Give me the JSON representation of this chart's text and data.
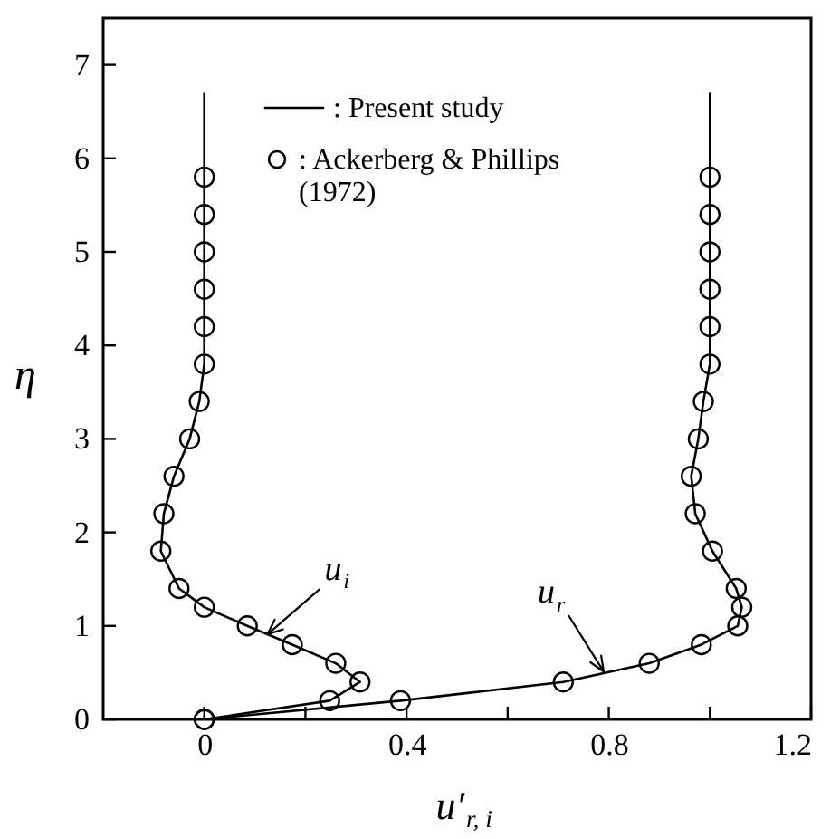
{
  "chart_data": {
    "type": "line",
    "xlabel": "u′$_{r, i}$",
    "ylabel": "η",
    "xlim": [
      -0.2,
      1.2
    ],
    "ylim": [
      0,
      7.5
    ],
    "xticks": [
      0,
      {
        "value": 0.2,
        "label": null
      },
      0.4,
      {
        "value": 0.6,
        "label": null
      },
      0.8,
      {
        "value": 1.0,
        "label": null
      },
      1.2
    ],
    "yticks": [
      0,
      1,
      2,
      3,
      4,
      5,
      6,
      7
    ],
    "grid": false,
    "legend": "top",
    "line_style": "solid",
    "annotations": [
      {
        "text": "u$_{i}$",
        "x": 0.125,
        "y": 0.91
      },
      {
        "text": "u$_{r}$",
        "x": 0.79,
        "y": 0.51
      }
    ],
    "series": [
      {
        "name": ": Present study",
        "marker": "none",
        "color": "#000000",
        "x": [
          0,
          0.248,
          0.308,
          0.26,
          0.174,
          0.085,
          0,
          -0.05,
          -0.086,
          -0.08,
          -0.06,
          -0.029,
          -0.01,
          0,
          0,
          0
        ],
        "values": [
          0,
          0.2,
          0.4,
          0.6,
          0.8,
          1.0,
          1.2,
          1.4,
          1.8,
          2.2,
          2.6,
          3.0,
          3.4,
          3.8,
          5.8,
          6.7
        ]
      },
      {
        "marker": "none",
        "color": "#000000",
        "x": [
          0,
          0.388,
          0.71,
          0.88,
          0.983,
          1.055,
          1.063,
          1.052,
          1.005,
          0.971,
          0.963,
          0.977,
          0.987,
          1.0,
          1.0,
          1.0
        ],
        "values": [
          0,
          0.2,
          0.4,
          0.6,
          0.8,
          1.0,
          1.2,
          1.4,
          1.8,
          2.2,
          2.6,
          3.0,
          3.4,
          3.8,
          5.8,
          6.7
        ]
      },
      {
        "name": ": Ackerberg & Phillips (1972)",
        "type": "scatter",
        "marker": "circle",
        "color": "#000000",
        "x": [
          0,
          0.248,
          0.308,
          0.26,
          0.174,
          0.085,
          0,
          -0.05,
          -0.086,
          -0.08,
          -0.06,
          -0.029,
          -0.01,
          0,
          0,
          0,
          0,
          0,
          0,
          0,
          0.388,
          0.71,
          0.88,
          0.983,
          1.055,
          1.063,
          1.052,
          1.005,
          0.971,
          0.963,
          0.977,
          0.987,
          1.0,
          1.0,
          1.0,
          1.0,
          1.0,
          1.0
        ],
        "values": [
          0,
          0.2,
          0.4,
          0.6,
          0.8,
          1.0,
          1.2,
          1.4,
          1.8,
          2.2,
          2.6,
          3.0,
          3.4,
          3.8,
          4.2,
          4.6,
          5.0,
          5.4,
          5.8,
          0,
          0.2,
          0.4,
          0.6,
          0.8,
          1.0,
          1.2,
          1.4,
          1.8,
          2.2,
          2.6,
          3.0,
          3.4,
          3.8,
          4.2,
          4.6,
          5.0,
          5.4,
          5.8
        ]
      }
    ]
  }
}
